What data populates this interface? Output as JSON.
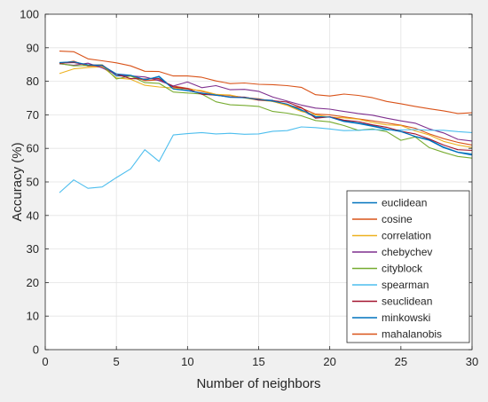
{
  "chart_data": {
    "type": "line",
    "title": "",
    "xlabel": "Number of neighbors",
    "ylabel": "Accuracy (%)",
    "xlim": [
      0,
      30
    ],
    "ylim": [
      0,
      100
    ],
    "xticks": [
      0,
      5,
      10,
      15,
      20,
      25,
      30
    ],
    "yticks": [
      0,
      10,
      20,
      30,
      40,
      50,
      60,
      70,
      80,
      90,
      100
    ],
    "grid": true,
    "legend_position": "bottom-right",
    "x": [
      1,
      2,
      3,
      4,
      5,
      6,
      7,
      8,
      9,
      10,
      11,
      12,
      13,
      14,
      15,
      16,
      17,
      18,
      19,
      20,
      21,
      22,
      23,
      24,
      25,
      26,
      27,
      28,
      29,
      30
    ],
    "series": [
      {
        "name": "euclidean",
        "color": "#0072BD",
        "values": [
          85.5,
          85.8,
          84.7,
          84.9,
          81.6,
          81.6,
          80.3,
          81.5,
          77.8,
          77.3,
          76.3,
          75.8,
          75.4,
          75.2,
          74.6,
          74.3,
          73.0,
          71.3,
          69.3,
          69.4,
          68.2,
          67.6,
          66.8,
          65.8,
          65.0,
          63.6,
          62.6,
          60.4,
          58.9,
          58.3
        ]
      },
      {
        "name": "cosine",
        "color": "#D95319",
        "values": [
          85.3,
          86.0,
          84.5,
          84.6,
          82.1,
          81.7,
          80.2,
          80.4,
          78.6,
          77.9,
          77.0,
          76.0,
          75.8,
          75.1,
          74.8,
          74.0,
          73.0,
          72.0,
          70.2,
          70.0,
          69.4,
          68.8,
          68.2,
          67.6,
          66.9,
          66.0,
          64.3,
          62.9,
          61.8,
          61.0
        ]
      },
      {
        "name": "correlation",
        "color": "#EDB120",
        "values": [
          82.3,
          83.7,
          84.1,
          84.3,
          81.0,
          80.6,
          78.8,
          78.3,
          78.0,
          77.7,
          77.2,
          76.1,
          75.9,
          75.0,
          74.4,
          74.0,
          72.8,
          71.0,
          70.0,
          69.3,
          69.1,
          68.7,
          67.7,
          67.0,
          66.8,
          65.2,
          64.0,
          62.1,
          61.0,
          60.3
        ]
      },
      {
        "name": "chebychev",
        "color": "#7E2F8E",
        "values": [
          85.2,
          84.8,
          85.4,
          84.0,
          82.1,
          81.6,
          81.3,
          80.2,
          78.6,
          79.8,
          78.1,
          78.7,
          77.5,
          77.6,
          77.0,
          75.3,
          74.1,
          72.9,
          72.0,
          71.7,
          71.0,
          70.4,
          69.9,
          69.0,
          68.2,
          67.5,
          65.8,
          64.6,
          62.7,
          62.2
        ]
      },
      {
        "name": "cityblock",
        "color": "#77AC30",
        "values": [
          85.3,
          84.6,
          84.7,
          84.9,
          80.7,
          81.6,
          79.6,
          79.4,
          76.8,
          76.5,
          76.2,
          73.9,
          73.0,
          72.8,
          72.5,
          71.0,
          70.5,
          69.7,
          68.3,
          67.9,
          66.8,
          65.4,
          65.8,
          65.0,
          62.4,
          63.4,
          60.2,
          58.8,
          57.6,
          57.1
        ]
      },
      {
        "name": "spearman",
        "color": "#4DBEEE",
        "values": [
          46.8,
          50.6,
          48.1,
          48.5,
          51.3,
          53.9,
          59.6,
          56.1,
          64.0,
          64.4,
          64.7,
          64.3,
          64.5,
          64.2,
          64.3,
          65.1,
          65.3,
          66.4,
          66.2,
          65.8,
          65.3,
          65.4,
          65.6,
          65.5,
          65.5,
          65.6,
          65.4,
          65.4,
          65.0,
          64.7
        ]
      },
      {
        "name": "seuclidean",
        "color": "#A2142F",
        "values": [
          85.4,
          85.6,
          84.9,
          84.8,
          82.1,
          80.8,
          80.7,
          80.8,
          78.3,
          77.8,
          76.1,
          75.9,
          75.3,
          75.3,
          74.4,
          74.2,
          73.8,
          72.2,
          69.0,
          69.4,
          68.4,
          68.0,
          67.0,
          66.3,
          65.1,
          64.3,
          62.8,
          61.0,
          59.6,
          59.4
        ]
      },
      {
        "name": "minkowski",
        "color": "#0072BD",
        "values": [
          85.6,
          85.8,
          84.9,
          84.7,
          82.2,
          81.8,
          80.5,
          81.3,
          77.7,
          77.2,
          76.5,
          75.9,
          75.2,
          75.1,
          74.6,
          74.1,
          73.2,
          71.5,
          69.5,
          69.3,
          68.0,
          67.4,
          66.6,
          65.7,
          65.1,
          63.5,
          62.4,
          60.2,
          58.8,
          58.0
        ]
      },
      {
        "name": "mahalanobis",
        "color": "#D95319",
        "values": [
          89.0,
          88.8,
          86.7,
          86.1,
          85.5,
          84.6,
          83.0,
          82.9,
          81.6,
          81.6,
          81.2,
          80.1,
          79.3,
          79.5,
          79.1,
          79.0,
          78.7,
          78.2,
          76.0,
          75.6,
          76.2,
          75.8,
          75.1,
          74.0,
          73.3,
          72.5,
          71.8,
          71.2,
          70.4,
          70.6
        ]
      }
    ]
  }
}
